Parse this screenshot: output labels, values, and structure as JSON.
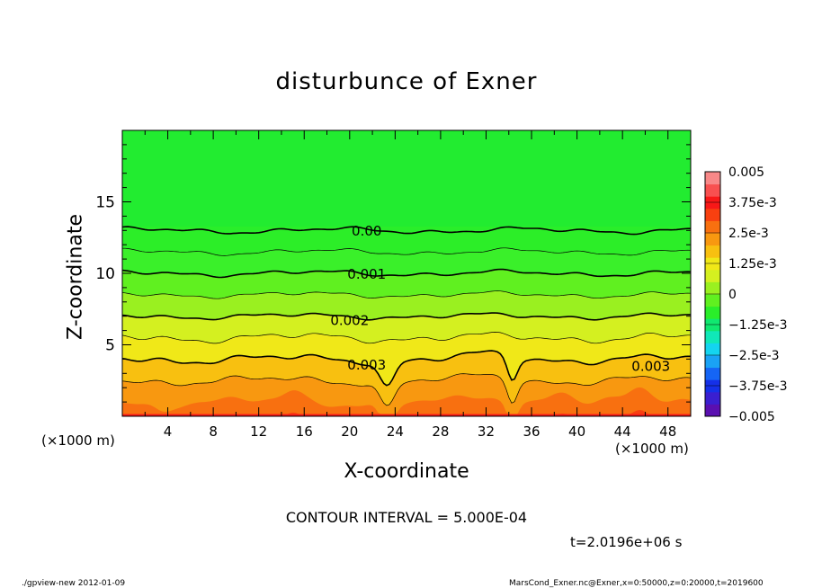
{
  "chart_data": {
    "type": "contour",
    "title": "disturbunce of Exner",
    "xlabel": "X-coordinate",
    "ylabel": "Z-coordinate",
    "x_unit": "(×1000 m)",
    "y_unit": "(×1000 m)",
    "xlim": [
      0,
      50
    ],
    "ylim": [
      0,
      20
    ],
    "x_ticks": [
      "4",
      "8",
      "12",
      "16",
      "20",
      "24",
      "28",
      "32",
      "36",
      "40",
      "44",
      "48"
    ],
    "y_ticks": [
      "5",
      "10",
      "15"
    ],
    "contour_interval_text": "CONTOUR INTERVAL = 5.000E-04",
    "time_text": "t=2.0196e+06 s",
    "colorbar": {
      "min": -0.005,
      "max": 0.005,
      "labels": [
        "0.005",
        "3.75e-3",
        "2.5e-3",
        "1.25e-3",
        "0",
        "−1.25e-3",
        "−2.5e-3",
        "−3.75e-3",
        "−0.005"
      ],
      "colors": [
        "#5a0fb0",
        "#3a1fd0",
        "#1530e8",
        "#1565f5",
        "#1aa2f5",
        "#14d4f0",
        "#10e8b8",
        "#10e870",
        "#2aee2a",
        "#60f020",
        "#9af020",
        "#d4f020",
        "#f0e818",
        "#f8c010",
        "#f89810",
        "#f87010",
        "#f84010",
        "#f81818",
        "#f85050",
        "#f88888"
      ]
    },
    "contour_labels": [
      {
        "text": "0.00",
        "x": 21.5,
        "z": 12.95
      },
      {
        "text": "0.001",
        "x": 21.5,
        "z": 9.95
      },
      {
        "text": "0.002",
        "x": 20.0,
        "z": 6.7
      },
      {
        "text": "0.003",
        "x": 21.5,
        "z": 3.6
      },
      {
        "text": "0.003",
        "x": 46.5,
        "z": 3.5
      }
    ]
  },
  "footer": {
    "left": "./gpview-new   2012-01-09",
    "right": "MarsCond_Exner.nc@Exner,x=0:50000,z=0:20000,t=2019600"
  }
}
